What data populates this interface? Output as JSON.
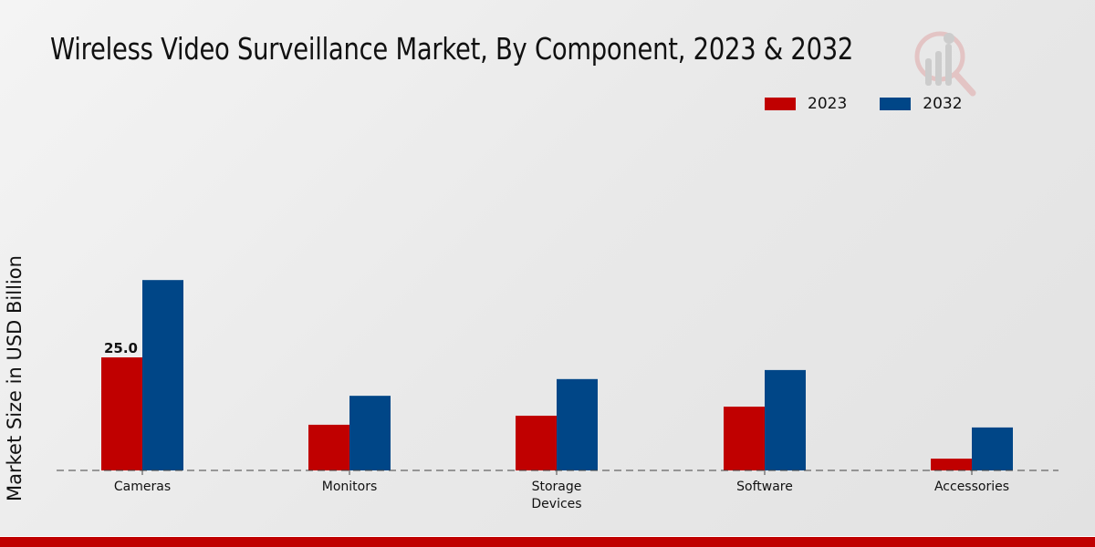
{
  "chart_data": {
    "type": "bar",
    "title": "Wireless Video Surveillance Market, By Component, 2023 & 2032",
    "xlabel": "",
    "ylabel": "Market Size in USD Billion",
    "categories": [
      "Cameras",
      "Monitors",
      "Storage\nDevices",
      "Software",
      "Accessories"
    ],
    "series": [
      {
        "name": "2023",
        "color": "#c00000",
        "values": [
          25.0,
          10.1,
          12.1,
          14.1,
          2.6
        ]
      },
      {
        "name": "2032",
        "color": "#004687",
        "values": [
          42.1,
          16.5,
          20.2,
          22.2,
          9.5
        ]
      }
    ],
    "data_labels": [
      {
        "series": "2023",
        "category": "Cameras",
        "text": "25.0"
      }
    ],
    "ylim": [
      0,
      50
    ],
    "grid": false,
    "legend": "top-right"
  },
  "footer_color": "#c00000"
}
